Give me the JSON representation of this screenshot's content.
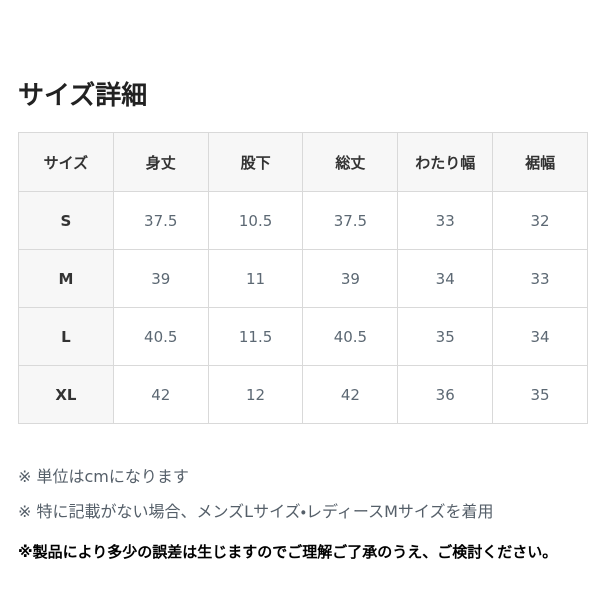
{
  "page": {
    "title": "サイズ詳細"
  },
  "table": {
    "columns": [
      "サイズ",
      "身丈",
      "股下",
      "総丈",
      "わたり幅",
      "裾幅"
    ],
    "rows": [
      {
        "size": "S",
        "values": [
          "37.5",
          "10.5",
          "37.5",
          "33",
          "32"
        ]
      },
      {
        "size": "M",
        "values": [
          "39",
          "11",
          "39",
          "34",
          "33"
        ]
      },
      {
        "size": "L",
        "values": [
          "40.5",
          "11.5",
          "40.5",
          "35",
          "34"
        ]
      },
      {
        "size": "XL",
        "values": [
          "42",
          "12",
          "42",
          "36",
          "35"
        ]
      }
    ]
  },
  "notes": [
    {
      "text": "※ 単位はcmになります"
    },
    {
      "text": "※ 特に記載がない場合、メンズLサイズ・レディースMサイズを着用"
    },
    {
      "text": "※製品により多少の誤差は生じますのでご理解ご了承のうえ、ご検討ください。"
    }
  ],
  "colors": {
    "header_bg": "#f7f7f7",
    "border": "#d9d9d9",
    "title_text": "#222222",
    "header_text": "#333333",
    "data_text": "#5c6873",
    "note_text": "#555f69",
    "emphasis_note_text": "#000000"
  }
}
